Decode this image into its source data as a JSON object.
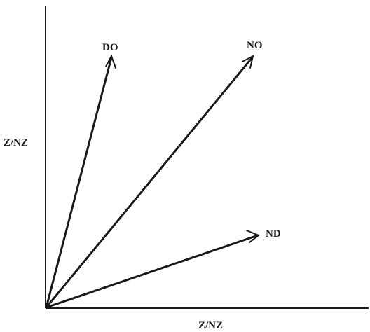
{
  "axes": {
    "x_label": "Z/NZ",
    "y_label": "Z/NZ"
  },
  "vectors": [
    {
      "label": "DO"
    },
    {
      "label": "NO"
    },
    {
      "label": "ND"
    }
  ],
  "colors": {
    "ink": "#1a1a1a",
    "background": "#ffffff"
  }
}
